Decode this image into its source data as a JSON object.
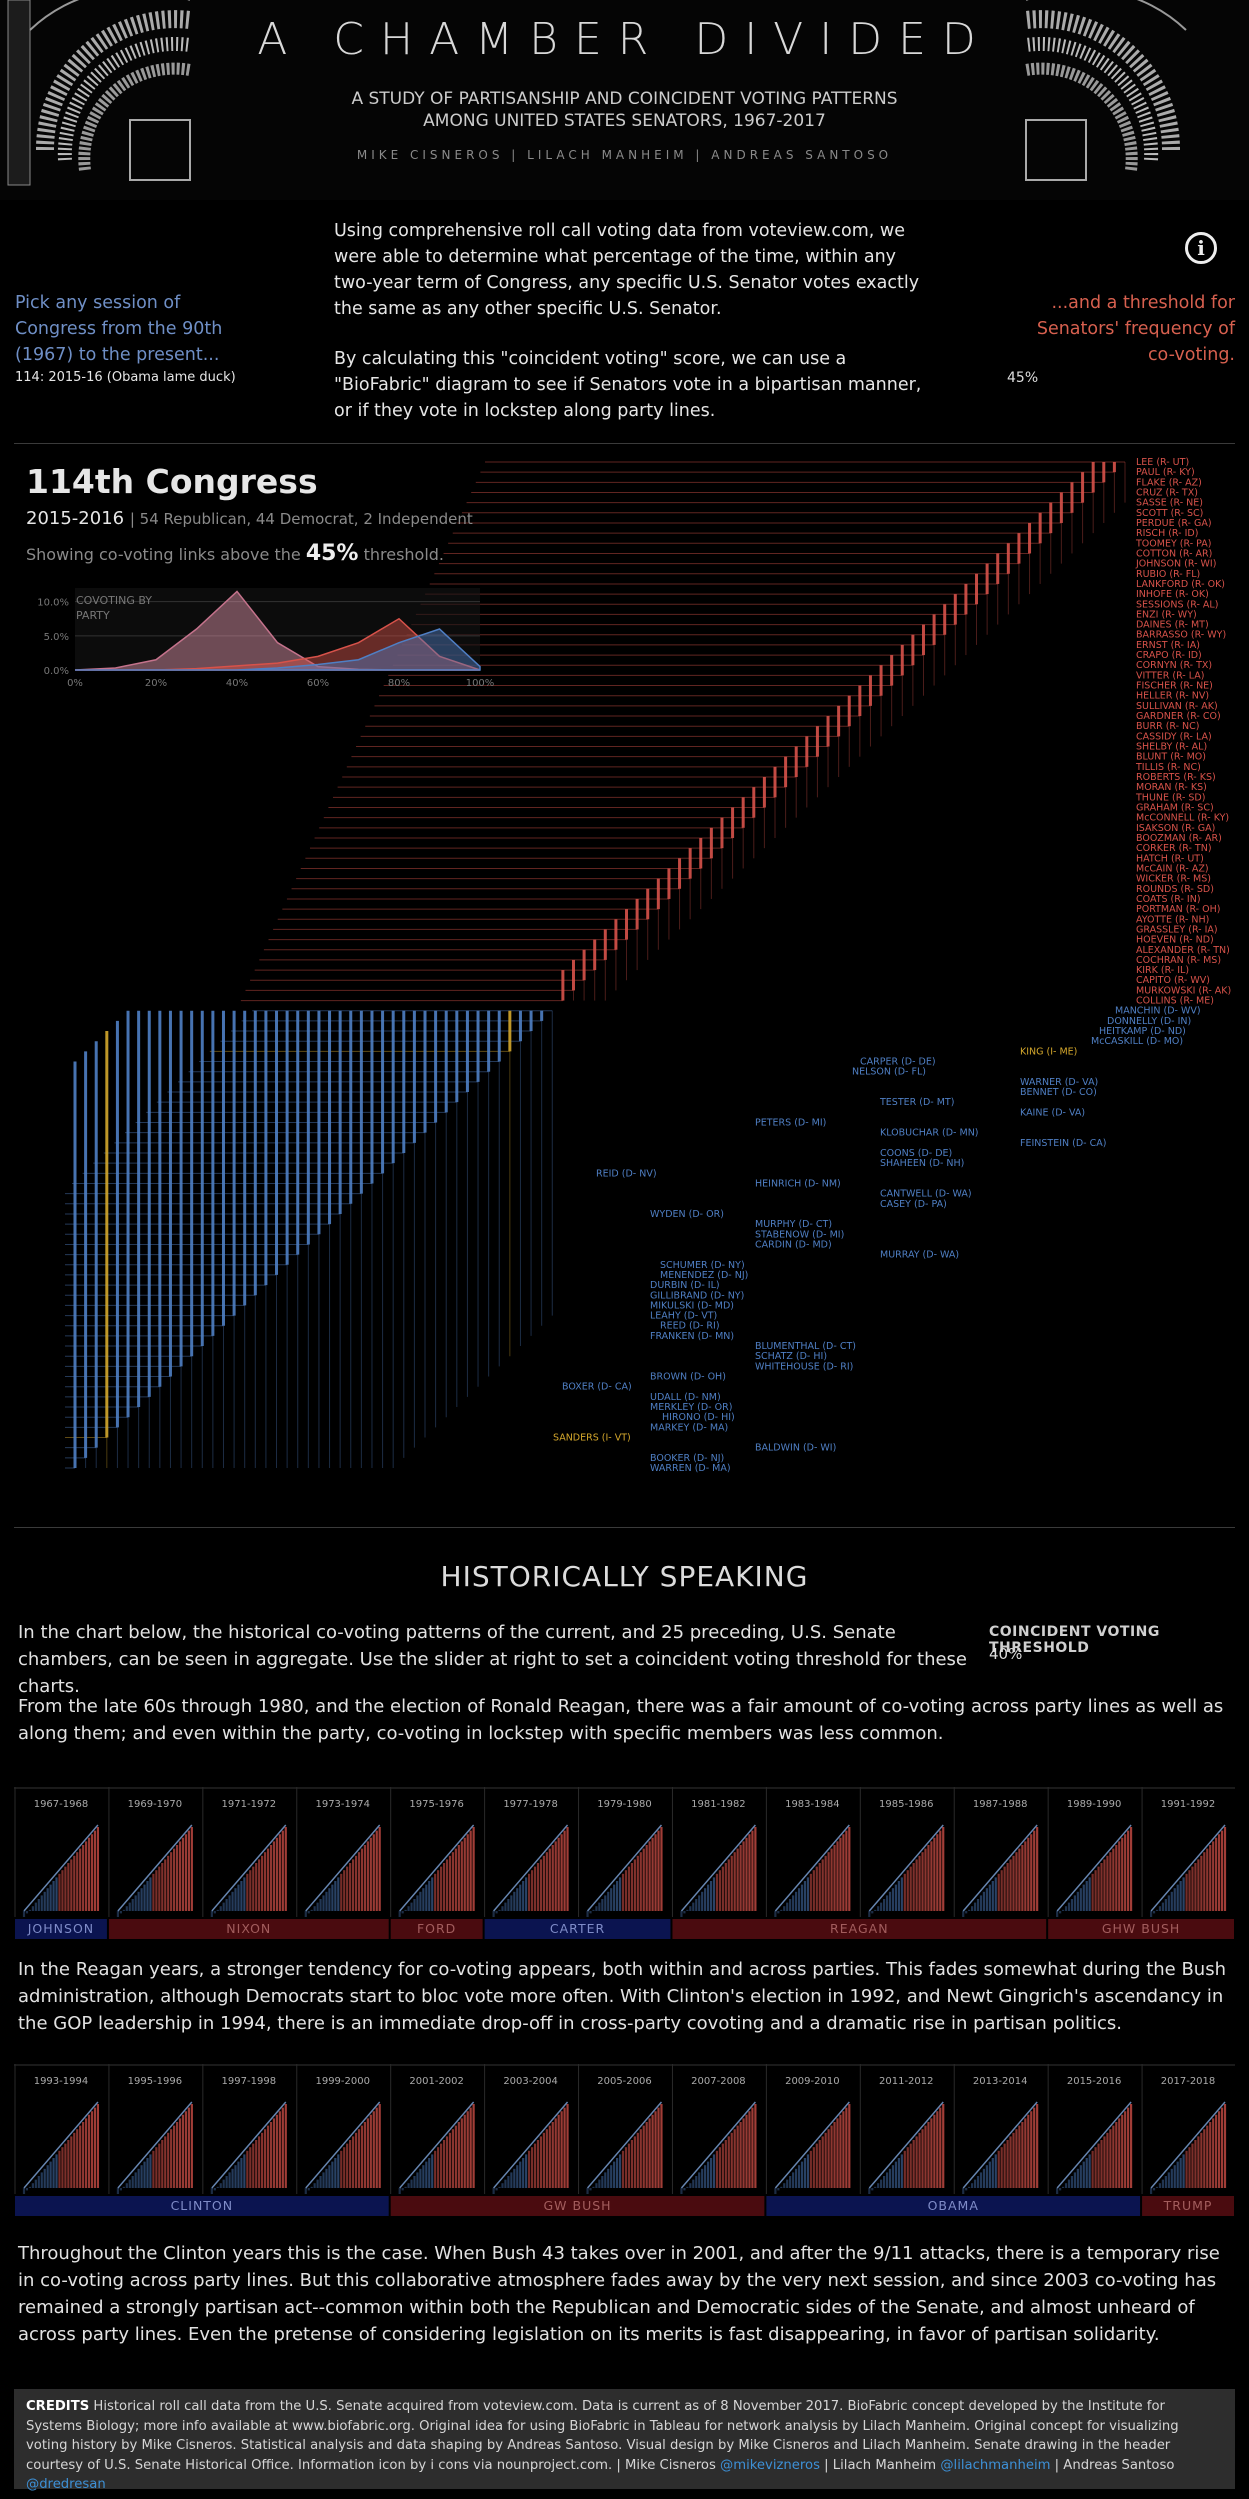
{
  "header": {
    "title": "A CHAMBER DIVIDED",
    "subtitle_line1": "A STUDY OF PARTISANSHIP AND COINCIDENT VOTING PATTERNS",
    "subtitle_line2": "AMONG UNITED STATES SENATORS, 1967-2017",
    "authors": "MIKE CISNEROS | LILACH MANHEIM | ANDREAS SANTOSO"
  },
  "intro": {
    "p1": "Using comprehensive roll call voting data from voteview.com, we were able to determine what percentage of the time, within any two-year term of Congress, any specific U.S. Senator votes exactly the same as any other specific U.S. Senator.",
    "p2": "By calculating this \"coincident voting\" score, we can use a \"BioFabric\" diagram to see if Senators vote in a bipartisan manner, or if they vote in lockstep along party lines.",
    "pick_label": "Pick any session of Congress from the 90th (1967) to the present...",
    "pick_value": "114: 2015-16 (Obama lame duck)",
    "threshold_label": "...and a threshold for Senators' frequency of co-voting.",
    "threshold_value": "45%",
    "info_icon": "i"
  },
  "colors": {
    "republican": "#d7524a",
    "democrat": "#4f7fc4",
    "independent": "#d4a72c",
    "background": "#000000"
  },
  "chart_data": {
    "type": "biofabric",
    "title": "114th Congress",
    "years": "2015-2016",
    "composition": "| 54 Republican, 44 Democrat, 2 Independent",
    "showing_prefix": "Showing co-voting links above the",
    "threshold": "45%",
    "showing_suffix": "threshold.",
    "mini_chart": {
      "type": "area",
      "title_line1": "COVOTING BY",
      "title_line2": "PARTY",
      "x_ticks": [
        "0%",
        "20%",
        "40%",
        "60%",
        "80%",
        "100%"
      ],
      "y_ticks": [
        "10.0%",
        "5.0%",
        "0.0%"
      ],
      "ylim": [
        0,
        12
      ],
      "x": [
        0,
        10,
        20,
        30,
        40,
        50,
        60,
        70,
        80,
        90,
        100
      ],
      "series": [
        {
          "party": "D-R",
          "values": [
            0,
            0.3,
            1.5,
            6,
            11.5,
            4,
            0.5,
            0.1,
            0,
            0,
            0
          ]
        },
        {
          "party": "R-R",
          "values": [
            0,
            0,
            0,
            0.2,
            0.6,
            1,
            2,
            4,
            7.5,
            2,
            0
          ]
        },
        {
          "party": "D-D",
          "values": [
            0,
            0,
            0,
            0,
            0,
            0.3,
            0.8,
            1.5,
            4,
            6,
            0.5
          ]
        }
      ]
    },
    "republicans": [
      "LEE (R- UT)",
      "PAUL (R- KY)",
      "FLAKE (R- AZ)",
      "CRUZ (R- TX)",
      "SASSE (R- NE)",
      "SCOTT (R- SC)",
      "PERDUE (R- GA)",
      "RISCH (R- ID)",
      "TOOMEY (R- PA)",
      "COTTON (R- AR)",
      "JOHNSON (R- WI)",
      "RUBIO (R- FL)",
      "LANKFORD (R- OK)",
      "INHOFE (R- OK)",
      "SESSIONS (R- AL)",
      "ENZI (R- WY)",
      "DAINES (R- MT)",
      "BARRASSO (R- WY)",
      "ERNST (R- IA)",
      "CRAPO (R- ID)",
      "CORNYN (R- TX)",
      "VITTER (R- LA)",
      "FISCHER (R- NE)",
      "HELLER (R- NV)",
      "SULLIVAN (R- AK)",
      "GARDNER (R- CO)",
      "BURR (R- NC)",
      "CASSIDY (R- LA)",
      "SHELBY (R- AL)",
      "BLUNT (R- MO)",
      "TILLIS (R- NC)",
      "ROBERTS (R- KS)",
      "MORAN (R- KS)",
      "THUNE (R- SD)",
      "GRAHAM (R- SC)",
      "McCONNELL (R- KY)",
      "ISAKSON (R- GA)",
      "BOOZMAN (R- AR)",
      "CORKER (R- TN)",
      "HATCH (R- UT)",
      "McCAIN (R- AZ)",
      "WICKER (R- MS)",
      "ROUNDS (R- SD)",
      "COATS (R- IN)",
      "PORTMAN (R- OH)",
      "AYOTTE (R- NH)",
      "GRASSLEY (R- IA)",
      "HOEVEN (R- ND)",
      "ALEXANDER (R- TN)",
      "COCHRAN (R- MS)",
      "KIRK (R- IL)",
      "CAPITO (R- WV)",
      "MURKOWSKI (R- AK)",
      "COLLINS (R- ME)"
    ],
    "democrats_right": [
      "MANCHIN (D- WV)",
      "DONNELLY (D- IN)",
      "HEITKAMP (D- ND)",
      "McCASKILL (D- MO)"
    ],
    "labels_middle": [
      {
        "name": "KING (I- ME)",
        "party": "I"
      },
      {
        "name": "CARPER (D- DE)",
        "party": "D"
      },
      {
        "name": "NELSON (D- FL)",
        "party": "D"
      },
      {
        "name": "WARNER (D- VA)",
        "party": "D"
      },
      {
        "name": "BENNET (D- CO)",
        "party": "D"
      },
      {
        "name": "TESTER (D- MT)",
        "party": "D"
      },
      {
        "name": "KAINE (D- VA)",
        "party": "D"
      },
      {
        "name": "PETERS (D- MI)",
        "party": "D"
      },
      {
        "name": "KLOBUCHAR (D- MN)",
        "party": "D"
      },
      {
        "name": "FEINSTEIN (D- CA)",
        "party": "D"
      },
      {
        "name": "COONS (D- DE)",
        "party": "D"
      },
      {
        "name": "SHAHEEN (D- NH)",
        "party": "D"
      },
      {
        "name": "REID (D- NV)",
        "party": "D"
      },
      {
        "name": "HEINRICH (D- NM)",
        "party": "D"
      },
      {
        "name": "CANTWELL (D- WA)",
        "party": "D"
      },
      {
        "name": "CASEY (D- PA)",
        "party": "D"
      },
      {
        "name": "WYDEN (D- OR)",
        "party": "D"
      },
      {
        "name": "MURPHY (D- CT)",
        "party": "D"
      },
      {
        "name": "STABENOW (D- MI)",
        "party": "D"
      },
      {
        "name": "CARDIN (D- MD)",
        "party": "D"
      },
      {
        "name": "MURRAY (D- WA)",
        "party": "D"
      },
      {
        "name": "SCHUMER (D- NY)",
        "party": "D"
      },
      {
        "name": "MENENDEZ (D- NJ)",
        "party": "D"
      },
      {
        "name": "DURBIN (D- IL)",
        "party": "D"
      },
      {
        "name": "GILLIBRAND (D- NY)",
        "party": "D"
      },
      {
        "name": "MIKULSKI (D- MD)",
        "party": "D"
      },
      {
        "name": "LEAHY (D- VT)",
        "party": "D"
      },
      {
        "name": "REED (D- RI)",
        "party": "D"
      },
      {
        "name": "FRANKEN (D- MN)",
        "party": "D"
      },
      {
        "name": "BLUMENTHAL (D- CT)",
        "party": "D"
      },
      {
        "name": "SCHATZ (D- HI)",
        "party": "D"
      },
      {
        "name": "WHITEHOUSE (D- RI)",
        "party": "D"
      },
      {
        "name": "BROWN (D- OH)",
        "party": "D"
      },
      {
        "name": "BOXER (D- CA)",
        "party": "D"
      },
      {
        "name": "UDALL (D- NM)",
        "party": "D"
      },
      {
        "name": "MERKLEY (D- OR)",
        "party": "D"
      },
      {
        "name": "HIRONO (D- HI)",
        "party": "D"
      },
      {
        "name": "MARKEY (D- MA)",
        "party": "D"
      },
      {
        "name": "SANDERS (I- VT)",
        "party": "I"
      },
      {
        "name": "BALDWIN (D- WI)",
        "party": "D"
      },
      {
        "name": "BOOKER (D- NJ)",
        "party": "D"
      },
      {
        "name": "WARREN (D- MA)",
        "party": "D"
      }
    ]
  },
  "history": {
    "title": "HISTORICALLY SPEAKING",
    "p1": "In the chart below, the historical co-voting patterns of the current, and 25 preceding, U.S. Senate chambers, can be seen in aggregate. Use the slider at right to set a coincident voting threshold for these charts.",
    "threshold_label": "COINCIDENT VOTING THRESHOLD",
    "threshold_value": "40%",
    "p2": "From the late 60s through 1980, and the election of Ronald Reagan, there was a fair amount of co-voting across party lines as well as along them; and even within the party, co-voting in lockstep with specific members was less common.",
    "row1_sessions": [
      "1967-1968",
      "1969-1970",
      "1971-1972",
      "1973-1974",
      "1975-1976",
      "1977-1978",
      "1979-1980",
      "1981-1982",
      "1983-1984",
      "1985-1986",
      "1987-1988",
      "1989-1990",
      "1991-1992"
    ],
    "row1_presidents": [
      {
        "name": "JOHNSON",
        "party": "D",
        "span": 1
      },
      {
        "name": "NIXON",
        "party": "R",
        "span": 3
      },
      {
        "name": "FORD",
        "party": "R",
        "span": 1
      },
      {
        "name": "CARTER",
        "party": "D",
        "span": 2
      },
      {
        "name": "REAGAN",
        "party": "R",
        "span": 4
      },
      {
        "name": "GHW BUSH",
        "party": "R",
        "span": 2
      }
    ],
    "p3": "In the Reagan years, a stronger tendency for co-voting appears, both within and across parties. This fades somewhat during the Bush administration, although Democrats start to bloc vote more often. With Clinton's election in 1992, and Newt Gingrich's ascendancy in the GOP leadership in 1994, there is an immediate drop-off in cross-party covoting and a dramatic rise in partisan politics.",
    "row2_sessions": [
      "1993-1994",
      "1995-1996",
      "1997-1998",
      "1999-2000",
      "2001-2002",
      "2003-2004",
      "2005-2006",
      "2007-2008",
      "2009-2010",
      "2011-2012",
      "2013-2014",
      "2015-2016",
      "2017-2018"
    ],
    "row2_presidents": [
      {
        "name": "CLINTON",
        "party": "D",
        "span": 4
      },
      {
        "name": "GW BUSH",
        "party": "R",
        "span": 4
      },
      {
        "name": "OBAMA",
        "party": "D",
        "span": 4
      },
      {
        "name": "TRUMP",
        "party": "R",
        "span": 1
      }
    ],
    "p4": "Throughout the Clinton years this is the case. When Bush 43 takes over in 2001, and after the 9/11 attacks, there is a temporary rise in co-voting across party lines. But this collaborative atmosphere fades away by the very next session, and since 2003 co-voting has remained a strongly partisan act--common within both the Republican and Democratic sides of the Senate, and almost unheard of across party lines. Even the pretense of considering legislation on its merits is fast disappearing, in favor of partisan solidarity."
  },
  "credits": {
    "label": "CREDITS",
    "text": "Historical roll call data from the U.S. Senate acquired from voteview.com. Data is current as of 8 November 2017. BioFabric concept developed by the Institute for Systems Biology; more info available at www.biofabric.org. Original idea for using BioFabric in Tableau for network analysis by Lilach Manheim. Original concept for visualizing voting history by Mike Cisneros. Statistical analysis and data shaping by Andreas Santoso. Visual design by Mike Cisneros and Lilach Manheim. Senate drawing in the header courtesy of U.S. Senate Historical Office. Information icon by i cons via nounproject.com. | Mike Cisneros ",
    "handle1": "@mikevizneros",
    "sep1": " | Lilach Manheim ",
    "handle2": "@lilachmanheim",
    "sep2": " | Andreas Santoso ",
    "handle3": "@dredresan"
  }
}
